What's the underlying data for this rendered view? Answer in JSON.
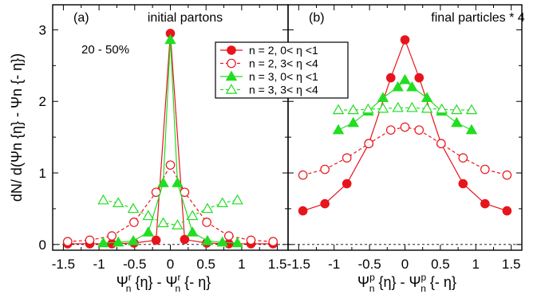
{
  "chart_data": [
    {
      "type": "line",
      "panel_label": "(a)",
      "title": "initial partons",
      "annotation": "20 - 50%",
      "ylabel": "dN/ d(Ψn {η} - Ψn {- η})",
      "xlabel_main": "Ψ",
      "xlabel_sup1": "r",
      "xlabel_sub1": "n",
      "xlabel_mid": " {η} - Ψ",
      "xlabel_sup2": "r",
      "xlabel_sub2": "n",
      "xlabel_tail": " {- η}",
      "xlim": [
        -1.65,
        1.65
      ],
      "ylim": [
        -0.08,
        3.35
      ],
      "xticks": [
        -1.5,
        -1,
        -0.5,
        0,
        0.5,
        1,
        1.5
      ],
      "xtick_labels": [
        "-1.5",
        "-1",
        "-0.5",
        "0",
        "0.5",
        "1",
        "1.5"
      ],
      "yticks": [
        0,
        1,
        2,
        3
      ],
      "ytick_labels": [
        "0",
        "1",
        "2",
        "3"
      ],
      "series": [
        {
          "name": "n = 2, 0< η <1",
          "marker": "circle-filled",
          "color": "#e8141c",
          "dashed": false,
          "x": [
            -1.44,
            -1.13,
            -0.82,
            -0.51,
            -0.2,
            0,
            0.2,
            0.51,
            0.82,
            1.13,
            1.44
          ],
          "y": [
            0.01,
            0.01,
            0.01,
            0.02,
            0.06,
            2.95,
            0.07,
            0.02,
            0.01,
            0.01,
            0.01
          ]
        },
        {
          "name": "n = 2, 3< η <4",
          "marker": "circle-open",
          "color": "#e8141c",
          "dashed": true,
          "x": [
            -1.44,
            -1.13,
            -0.82,
            -0.51,
            -0.2,
            0,
            0.2,
            0.51,
            0.82,
            1.13,
            1.44
          ],
          "y": [
            0.04,
            0.06,
            0.12,
            0.31,
            0.73,
            1.11,
            0.73,
            0.31,
            0.12,
            0.06,
            0.04
          ]
        },
        {
          "name": "n = 3, 0< η <1",
          "marker": "triangle-filled",
          "color": "#22dd22",
          "dashed": false,
          "x": [
            -0.94,
            -0.73,
            -0.52,
            -0.31,
            -0.1,
            0,
            0.1,
            0.31,
            0.52,
            0.73,
            0.94
          ],
          "y": [
            0.02,
            0.03,
            0.05,
            0.17,
            0.86,
            2.86,
            0.86,
            0.17,
            0.05,
            0.03,
            0.02
          ]
        },
        {
          "name": "n = 3, 3< η <4",
          "marker": "triangle-open",
          "color": "#22dd22",
          "dashed": true,
          "x": [
            -0.94,
            -0.73,
            -0.52,
            -0.31,
            -0.1,
            0.1,
            0.31,
            0.52,
            0.73,
            0.94
          ],
          "y": [
            0.62,
            0.58,
            0.5,
            0.4,
            0.3,
            0.27,
            0.4,
            0.5,
            0.58,
            0.62
          ]
        }
      ],
      "legend": {
        "position": "top-right"
      }
    },
    {
      "type": "line",
      "panel_label": "(b)",
      "title": "final particles * 4",
      "xlabel_main": "Ψ",
      "xlabel_sup1": "p",
      "xlabel_sub1": "n",
      "xlabel_mid": " {η} - Ψ",
      "xlabel_sup2": "p",
      "xlabel_sub2": "n",
      "xlabel_tail": " {- η}",
      "xlim": [
        -1.65,
        1.65
      ],
      "ylim": [
        -0.08,
        3.35
      ],
      "xticks": [
        -1.5,
        -1,
        -0.5,
        0,
        0.5,
        1,
        1.5
      ],
      "xtick_labels": [
        "-1.5",
        "-1",
        "-0.5",
        "0",
        "0.5",
        "1",
        "1.5"
      ],
      "series": [
        {
          "name": "n = 2, 0< η <1",
          "marker": "circle-filled",
          "color": "#e8141c",
          "dashed": false,
          "x": [
            -1.44,
            -1.13,
            -0.82,
            -0.51,
            -0.2,
            0,
            0.2,
            0.51,
            0.82,
            1.13,
            1.44
          ],
          "y": [
            0.47,
            0.57,
            0.85,
            1.41,
            2.33,
            2.86,
            2.33,
            1.41,
            0.85,
            0.57,
            0.47
          ]
        },
        {
          "name": "n = 2, 3< η <4",
          "marker": "circle-open",
          "color": "#e8141c",
          "dashed": true,
          "x": [
            -1.44,
            -1.13,
            -0.82,
            -0.51,
            -0.2,
            0,
            0.2,
            0.51,
            0.82,
            1.13,
            1.44
          ],
          "y": [
            0.97,
            1.05,
            1.21,
            1.41,
            1.6,
            1.64,
            1.6,
            1.41,
            1.21,
            1.05,
            0.97
          ]
        },
        {
          "name": "n = 3, 0< η <1",
          "marker": "triangle-filled",
          "color": "#22dd22",
          "dashed": false,
          "x": [
            -0.94,
            -0.73,
            -0.52,
            -0.31,
            -0.1,
            0,
            0.1,
            0.31,
            0.52,
            0.73,
            0.94
          ],
          "y": [
            1.6,
            1.7,
            1.86,
            2.05,
            2.2,
            2.3,
            2.2,
            2.05,
            1.86,
            1.7,
            1.6
          ]
        },
        {
          "name": "n = 3, 3< η <4",
          "marker": "triangle-open",
          "color": "#22dd22",
          "dashed": true,
          "x": [
            -0.94,
            -0.73,
            -0.52,
            -0.31,
            -0.1,
            0.1,
            0.31,
            0.52,
            0.73,
            0.94
          ],
          "y": [
            1.88,
            1.88,
            1.89,
            1.9,
            1.91,
            1.91,
            1.9,
            1.89,
            1.88,
            1.88
          ]
        }
      ]
    }
  ]
}
